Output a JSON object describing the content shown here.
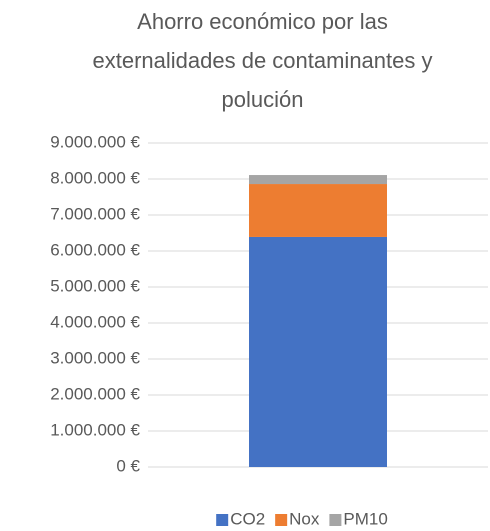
{
  "chart_data": {
    "type": "stacked_bar",
    "title": "Ahorro económico por las externalidades de contaminantes y polución",
    "categories": [
      null
    ],
    "series": [
      {
        "name": "CO2",
        "color": "#4472c4",
        "values": [
          6390000
        ]
      },
      {
        "name": "Nox",
        "color": "#ed7d31",
        "values": [
          1470000
        ]
      },
      {
        "name": "PM10",
        "color": "#a5a5a5",
        "values": [
          250000
        ]
      }
    ],
    "ylim": [
      0,
      9000000
    ],
    "yticks": [
      {
        "value": 0,
        "label": "0 €"
      },
      {
        "value": 1000000,
        "label": "1.000.000 €"
      },
      {
        "value": 2000000,
        "label": "2.000.000 €"
      },
      {
        "value": 3000000,
        "label": "3.000.000 €"
      },
      {
        "value": 4000000,
        "label": "4.000.000 €"
      },
      {
        "value": 5000000,
        "label": "5.000.000 €"
      },
      {
        "value": 6000000,
        "label": "6.000.000 €"
      },
      {
        "value": 7000000,
        "label": "7.000.000 €"
      },
      {
        "value": 8000000,
        "label": "8.000.000 €"
      },
      {
        "value": 9000000,
        "label": "9.000.000 €"
      }
    ],
    "grid": true,
    "legend": "bottom"
  }
}
